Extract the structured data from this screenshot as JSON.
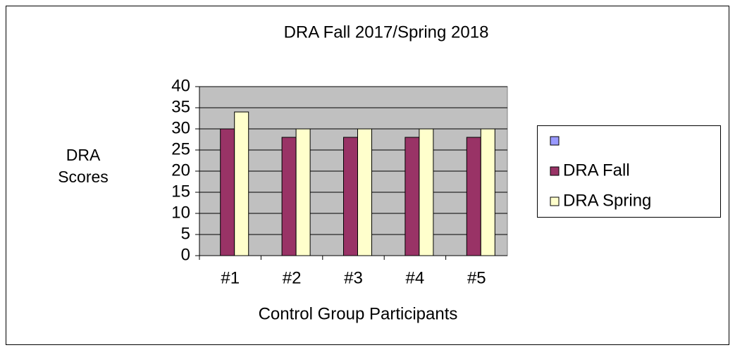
{
  "chart_data": {
    "type": "bar",
    "title": "DRA Fall 2017/Spring 2018",
    "y_label": "DRA Scores",
    "x_label": "Control Group Participants",
    "categories": [
      "#1",
      "#2",
      "#3",
      "#4",
      "#5"
    ],
    "series": [
      {
        "name": null,
        "color": "#9999ff",
        "values": [
          null,
          null,
          null,
          null,
          null
        ]
      },
      {
        "name": "DRA Fall",
        "color": "#993366",
        "values": [
          30,
          28,
          28,
          28,
          28
        ]
      },
      {
        "name": "DRA Spring",
        "color": "#ffffcc",
        "values": [
          34,
          30,
          30,
          30,
          30
        ]
      }
    ],
    "ylim": [
      0,
      40
    ],
    "yticks": [
      0,
      5,
      10,
      15,
      20,
      25,
      30,
      35,
      40
    ],
    "grid": true,
    "legend": "right",
    "plot_background": "#c0c0c0"
  }
}
